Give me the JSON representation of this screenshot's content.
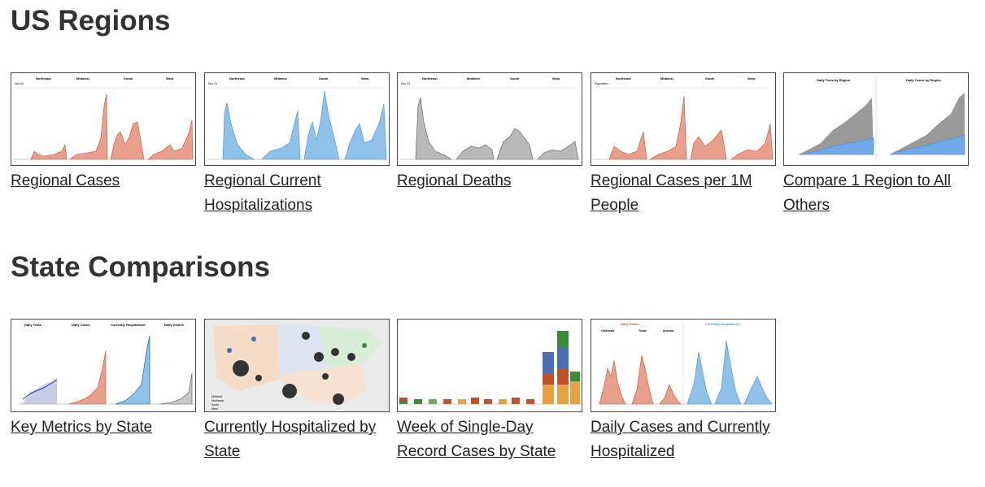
{
  "sections": [
    {
      "title": "US Regions",
      "cards": [
        {
          "caption": "Regional Cases",
          "thumb_text": {
            "headers": [
              "Northeast",
              "Midwest",
              "South",
              "West"
            ],
            "date": "Nov 24"
          },
          "colors": {
            "fill": "#e8a08c",
            "line": "#c9503a"
          }
        },
        {
          "caption": "Regional Current Hospitalizations",
          "thumb_text": {
            "headers": [
              "Northeast",
              "Midwest",
              "South",
              "West"
            ],
            "date": "Nov 24"
          },
          "colors": {
            "fill": "#8ec2ea",
            "line": "#4b8fd0"
          }
        },
        {
          "caption": "Regional Deaths",
          "thumb_text": {
            "headers": [
              "Northeast",
              "Midwest",
              "South",
              "West"
            ],
            "date": "Nov 24"
          },
          "colors": {
            "fill": "#b9b9b9",
            "line": "#555555"
          }
        },
        {
          "caption": "Regional Cases per 1M People",
          "thumb_text": {
            "headers": [
              "Northeast",
              "Midwest",
              "South",
              "West"
            ],
            "date": "Population"
          },
          "colors": {
            "fill": "#e8a08c",
            "line": "#c9503a"
          }
        },
        {
          "caption": "Compare 1 Region to All Others",
          "thumb_text": {
            "headers": [
              "Daily Tests by Region",
              "Daily Cases by Region"
            ]
          },
          "colors": {
            "fill": "#9a9a9a",
            "line": "#3d8be0"
          }
        }
      ]
    },
    {
      "title": "State Comparisons",
      "cards": [
        {
          "caption": "Key Metrics by State",
          "thumb_text": {
            "headers": [
              "Daily Tests",
              "Daily Cases",
              "Currently Hospitalized",
              "Daily Deaths"
            ]
          },
          "colors": {
            "fill": "#e8a08c",
            "line": "#2c3f8c"
          }
        },
        {
          "caption": "Currently Hospitalized by State",
          "thumb_text": {
            "legend": [
              "Midwest",
              "Northeast",
              "South",
              "West"
            ]
          },
          "colors": {
            "fill": "#333333",
            "line": "#f5dcc8"
          }
        },
        {
          "caption": "Week of Single-Day Record Cases by State",
          "thumb_text": {},
          "colors": {
            "fill": "#c0522a",
            "line": "#4a6bb5"
          }
        },
        {
          "caption": "Daily Cases and Currently Hospitalized",
          "thumb_text": {
            "headers": [
              "Daily Cases",
              "Currently Hospitalized",
              "California",
              "Texas",
              "Arizona"
            ]
          },
          "colors": {
            "fill": "#e8a08c",
            "line": "#8ec2ea"
          }
        }
      ]
    }
  ]
}
